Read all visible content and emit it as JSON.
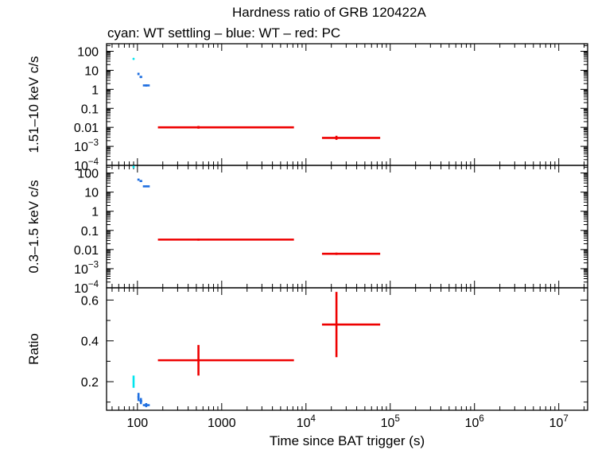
{
  "title": "Hardness ratio of GRB 120422A",
  "subtitle": "cyan: WT settling – blue: WT – red: PC",
  "xlabel": "Time since BAT trigger (s)",
  "colors": {
    "wt_settling": "#00e5ee",
    "wt": "#1f6fe0",
    "pc": "#ee0000"
  },
  "x_ticks": [
    {
      "value": 100,
      "base": "100",
      "exp": ""
    },
    {
      "value": 1000,
      "base": "1000",
      "exp": ""
    },
    {
      "value": 10000,
      "base": "10",
      "exp": "4"
    },
    {
      "value": 100000,
      "base": "10",
      "exp": "5"
    },
    {
      "value": 1000000,
      "base": "10",
      "exp": "6"
    },
    {
      "value": 10000000,
      "base": "10",
      "exp": "7"
    }
  ],
  "chart_data": [
    {
      "type": "scatter",
      "ylabel": "1.51–10 keV c/s",
      "yscale": "log",
      "xscale": "log",
      "ylim": [
        0.0001,
        250
      ],
      "y_ticks": [
        {
          "value": 100,
          "base": "100",
          "exp": ""
        },
        {
          "value": 10,
          "base": "10",
          "exp": ""
        },
        {
          "value": 1,
          "base": "1",
          "exp": ""
        },
        {
          "value": 0.1,
          "base": "0.1",
          "exp": ""
        },
        {
          "value": 0.01,
          "base": "0.01",
          "exp": ""
        },
        {
          "value": 0.001,
          "base": "10",
          "exp": "−3"
        },
        {
          "value": 0.0001,
          "base": "10",
          "exp": "−4"
        }
      ],
      "series": [
        {
          "color_key": "wt_settling",
          "points": [
            {
              "x": 90,
              "x0": 88,
              "x1": 92,
              "y": 40,
              "y0": 36,
              "y1": 44
            }
          ]
        },
        {
          "color_key": "wt",
          "points": [
            {
              "x": 103,
              "x0": 100,
              "x1": 106,
              "y": 6.5,
              "y0": 5.6,
              "y1": 7.4
            },
            {
              "x": 110,
              "x0": 106,
              "x1": 114,
              "y": 4.5,
              "y0": 3.9,
              "y1": 5.1
            },
            {
              "x": 127,
              "x0": 116,
              "x1": 140,
              "y": 1.6,
              "y0": 1.4,
              "y1": 1.8
            }
          ]
        },
        {
          "color_key": "pc",
          "points": [
            {
              "x": 530,
              "x0": 175,
              "x1": 7200,
              "y": 0.01,
              "y0": 0.0085,
              "y1": 0.0118
            },
            {
              "x": 23000,
              "x0": 15500,
              "x1": 76000,
              "y": 0.0028,
              "y0": 0.0022,
              "y1": 0.0036
            }
          ]
        }
      ]
    },
    {
      "type": "scatter",
      "ylabel": "0.3–1.5 keV c/s",
      "yscale": "log",
      "xscale": "log",
      "ylim": [
        0.0001,
        250
      ],
      "y_ticks": [
        {
          "value": 100,
          "base": "100",
          "exp": ""
        },
        {
          "value": 10,
          "base": "10",
          "exp": ""
        },
        {
          "value": 1,
          "base": "1",
          "exp": ""
        },
        {
          "value": 0.1,
          "base": "0.1",
          "exp": ""
        },
        {
          "value": 0.01,
          "base": "0.01",
          "exp": ""
        },
        {
          "value": 0.001,
          "base": "10",
          "exp": "−3"
        },
        {
          "value": 0.0001,
          "base": "10",
          "exp": "−4"
        }
      ],
      "series": [
        {
          "color_key": "wt_settling",
          "points": [
            {
              "x": 90,
              "x0": 88,
              "x1": 92,
              "y": 210,
              "y0": 180,
              "y1": 240
            }
          ]
        },
        {
          "color_key": "wt",
          "points": [
            {
              "x": 103,
              "x0": 100,
              "x1": 106,
              "y": 45,
              "y0": 40,
              "y1": 50
            },
            {
              "x": 110,
              "x0": 106,
              "x1": 114,
              "y": 38,
              "y0": 34,
              "y1": 42
            },
            {
              "x": 127,
              "x0": 116,
              "x1": 140,
              "y": 20,
              "y0": 18,
              "y1": 22
            }
          ]
        },
        {
          "color_key": "pc",
          "points": [
            {
              "x": 530,
              "x0": 175,
              "x1": 7200,
              "y": 0.033,
              "y0": 0.029,
              "y1": 0.037
            },
            {
              "x": 23000,
              "x0": 15500,
              "x1": 76000,
              "y": 0.006,
              "y0": 0.0052,
              "y1": 0.0069
            }
          ]
        }
      ]
    },
    {
      "type": "scatter",
      "ylabel": "Ratio",
      "yscale": "linear",
      "xscale": "log",
      "ylim": [
        0.06,
        0.66
      ],
      "y_ticks": [
        {
          "value": 0.2,
          "base": "0.2",
          "exp": ""
        },
        {
          "value": 0.4,
          "base": "0.4",
          "exp": ""
        },
        {
          "value": 0.6,
          "base": "0.6",
          "exp": ""
        }
      ],
      "series": [
        {
          "color_key": "wt_settling",
          "points": [
            {
              "x": 90,
              "x0": 88,
              "x1": 92,
              "y": 0.2,
              "y0": 0.17,
              "y1": 0.23
            }
          ]
        },
        {
          "color_key": "wt",
          "points": [
            {
              "x": 103,
              "x0": 100,
              "x1": 106,
              "y": 0.125,
              "y0": 0.105,
              "y1": 0.145
            },
            {
              "x": 110,
              "x0": 106,
              "x1": 114,
              "y": 0.105,
              "y0": 0.09,
              "y1": 0.12
            },
            {
              "x": 127,
              "x0": 116,
              "x1": 140,
              "y": 0.085,
              "y0": 0.075,
              "y1": 0.095
            }
          ]
        },
        {
          "color_key": "pc",
          "points": [
            {
              "x": 530,
              "x0": 175,
              "x1": 7200,
              "y": 0.305,
              "y0": 0.23,
              "y1": 0.38
            },
            {
              "x": 23000,
              "x0": 15500,
              "x1": 76000,
              "y": 0.48,
              "y0": 0.32,
              "y1": 0.64
            }
          ]
        }
      ]
    }
  ]
}
